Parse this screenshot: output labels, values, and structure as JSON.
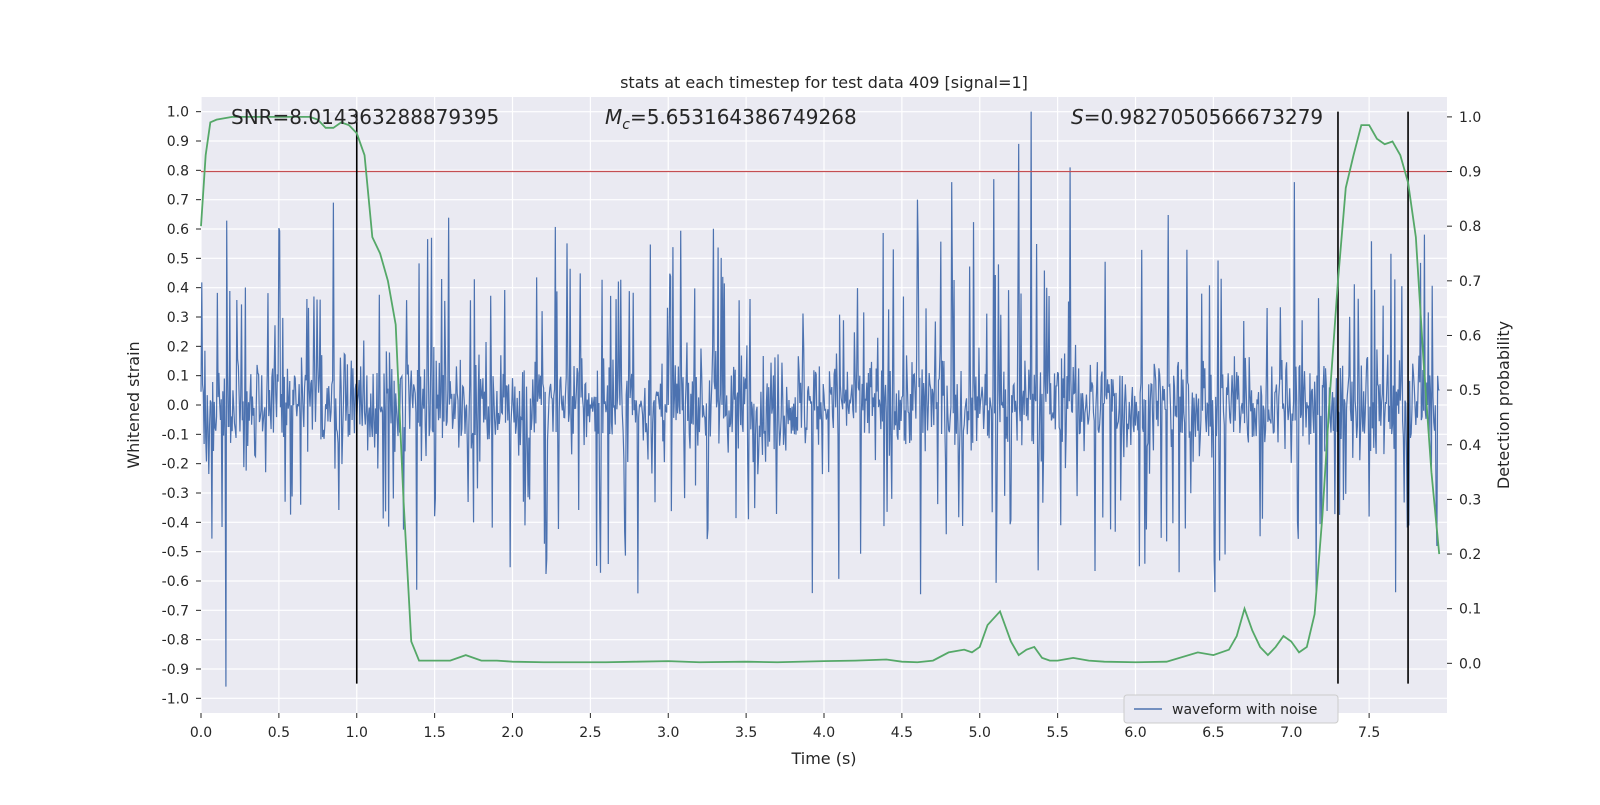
{
  "chart_data": {
    "type": "line",
    "title": "stats at each timestep for test data 409 [signal=1]",
    "xlabel": "Time (s)",
    "ylabel_left": "Whitened strain",
    "ylabel_right": "Detection probability",
    "xlim": [
      0.0,
      8.0
    ],
    "ylim_left": [
      -1.05,
      1.05
    ],
    "ylim_right": [
      -0.0909,
      1.0364
    ],
    "x_ticks": [
      "0.0",
      "0.5",
      "1.0",
      "1.5",
      "2.0",
      "2.5",
      "3.0",
      "3.5",
      "4.0",
      "4.5",
      "5.0",
      "5.5",
      "6.0",
      "6.5",
      "7.0",
      "7.5"
    ],
    "y_left_ticks": [
      "1.0",
      "0.9",
      "0.8",
      "0.7",
      "0.6",
      "0.5",
      "0.4",
      "0.3",
      "0.2",
      "0.1",
      "0.0",
      "-0.1",
      "-0.2",
      "-0.3",
      "-0.4",
      "-0.5",
      "-0.6",
      "-0.7",
      "-0.8",
      "-0.9",
      "-1.0"
    ],
    "y_right_ticks": [
      "1.0",
      "0.9",
      "0.8",
      "0.7",
      "0.6",
      "0.5",
      "0.4",
      "0.3",
      "0.2",
      "0.1",
      "0.0"
    ],
    "grid": true,
    "legend": {
      "placement": "lower-right",
      "entries": [
        "waveform with noise"
      ]
    },
    "annotations": {
      "snr": "SNR=8.014363288879395",
      "mc_symbol": "M",
      "mc_sub": "c",
      "mc_value": "=5.653164386749268",
      "s_symbol": "S",
      "s_value": "=0.9827050566673279"
    },
    "threshold": {
      "value": 0.9,
      "axis": "right",
      "color": "#c44e52"
    },
    "vertical_markers": [
      1.0,
      7.3,
      7.75
    ],
    "waveform": {
      "name": "waveform with noise",
      "color": "#4c72b0",
      "sample_step_s": 0.005,
      "typical_envelope": 0.35,
      "peaks": [
        {
          "x": 5.33,
          "y": 1.0
        },
        {
          "x": 5.25,
          "y": 0.89
        },
        {
          "x": 5.09,
          "y": 0.77
        },
        {
          "x": 4.82,
          "y": 0.76
        },
        {
          "x": 4.6,
          "y": 0.7
        },
        {
          "x": 0.85,
          "y": 0.69
        },
        {
          "x": 0.16,
          "y": -0.96
        },
        {
          "x": 5.58,
          "y": 0.81
        },
        {
          "x": 7.02,
          "y": 0.76
        }
      ]
    },
    "probability": {
      "name": "Detection probability",
      "color": "#55a868",
      "x": [
        0.0,
        0.03,
        0.06,
        0.1,
        0.2,
        0.3,
        0.4,
        0.5,
        0.6,
        0.7,
        0.75,
        0.8,
        0.85,
        0.9,
        0.95,
        1.0,
        1.05,
        1.1,
        1.15,
        1.2,
        1.25,
        1.3,
        1.35,
        1.4,
        1.5,
        1.6,
        1.7,
        1.8,
        1.9,
        2.0,
        2.2,
        2.4,
        2.6,
        2.8,
        3.0,
        3.2,
        3.5,
        3.7,
        4.0,
        4.2,
        4.4,
        4.5,
        4.6,
        4.7,
        4.8,
        4.9,
        4.95,
        5.0,
        5.05,
        5.13,
        5.2,
        5.25,
        5.3,
        5.35,
        5.4,
        5.45,
        5.5,
        5.6,
        5.7,
        5.8,
        6.0,
        6.2,
        6.4,
        6.5,
        6.6,
        6.65,
        6.7,
        6.75,
        6.8,
        6.85,
        6.9,
        6.95,
        7.0,
        7.05,
        7.1,
        7.15,
        7.2,
        7.25,
        7.3,
        7.35,
        7.4,
        7.45,
        7.5,
        7.55,
        7.6,
        7.65,
        7.7,
        7.75,
        7.8,
        7.85,
        7.9,
        7.95
      ],
      "y": [
        0.8,
        0.93,
        0.99,
        0.995,
        1.0,
        1.0,
        1.0,
        1.0,
        1.0,
        1.0,
        0.995,
        0.98,
        0.98,
        0.99,
        0.985,
        0.97,
        0.93,
        0.78,
        0.75,
        0.7,
        0.62,
        0.3,
        0.04,
        0.005,
        0.005,
        0.005,
        0.015,
        0.005,
        0.005,
        0.003,
        0.002,
        0.002,
        0.002,
        0.003,
        0.004,
        0.002,
        0.003,
        0.002,
        0.004,
        0.005,
        0.007,
        0.003,
        0.002,
        0.005,
        0.02,
        0.025,
        0.02,
        0.03,
        0.07,
        0.095,
        0.04,
        0.015,
        0.025,
        0.03,
        0.01,
        0.005,
        0.005,
        0.01,
        0.005,
        0.003,
        0.002,
        0.003,
        0.02,
        0.015,
        0.025,
        0.05,
        0.1,
        0.06,
        0.03,
        0.015,
        0.03,
        0.05,
        0.04,
        0.02,
        0.03,
        0.09,
        0.27,
        0.5,
        0.7,
        0.87,
        0.93,
        0.985,
        0.985,
        0.96,
        0.95,
        0.955,
        0.93,
        0.88,
        0.78,
        0.55,
        0.35,
        0.2
      ]
    }
  }
}
